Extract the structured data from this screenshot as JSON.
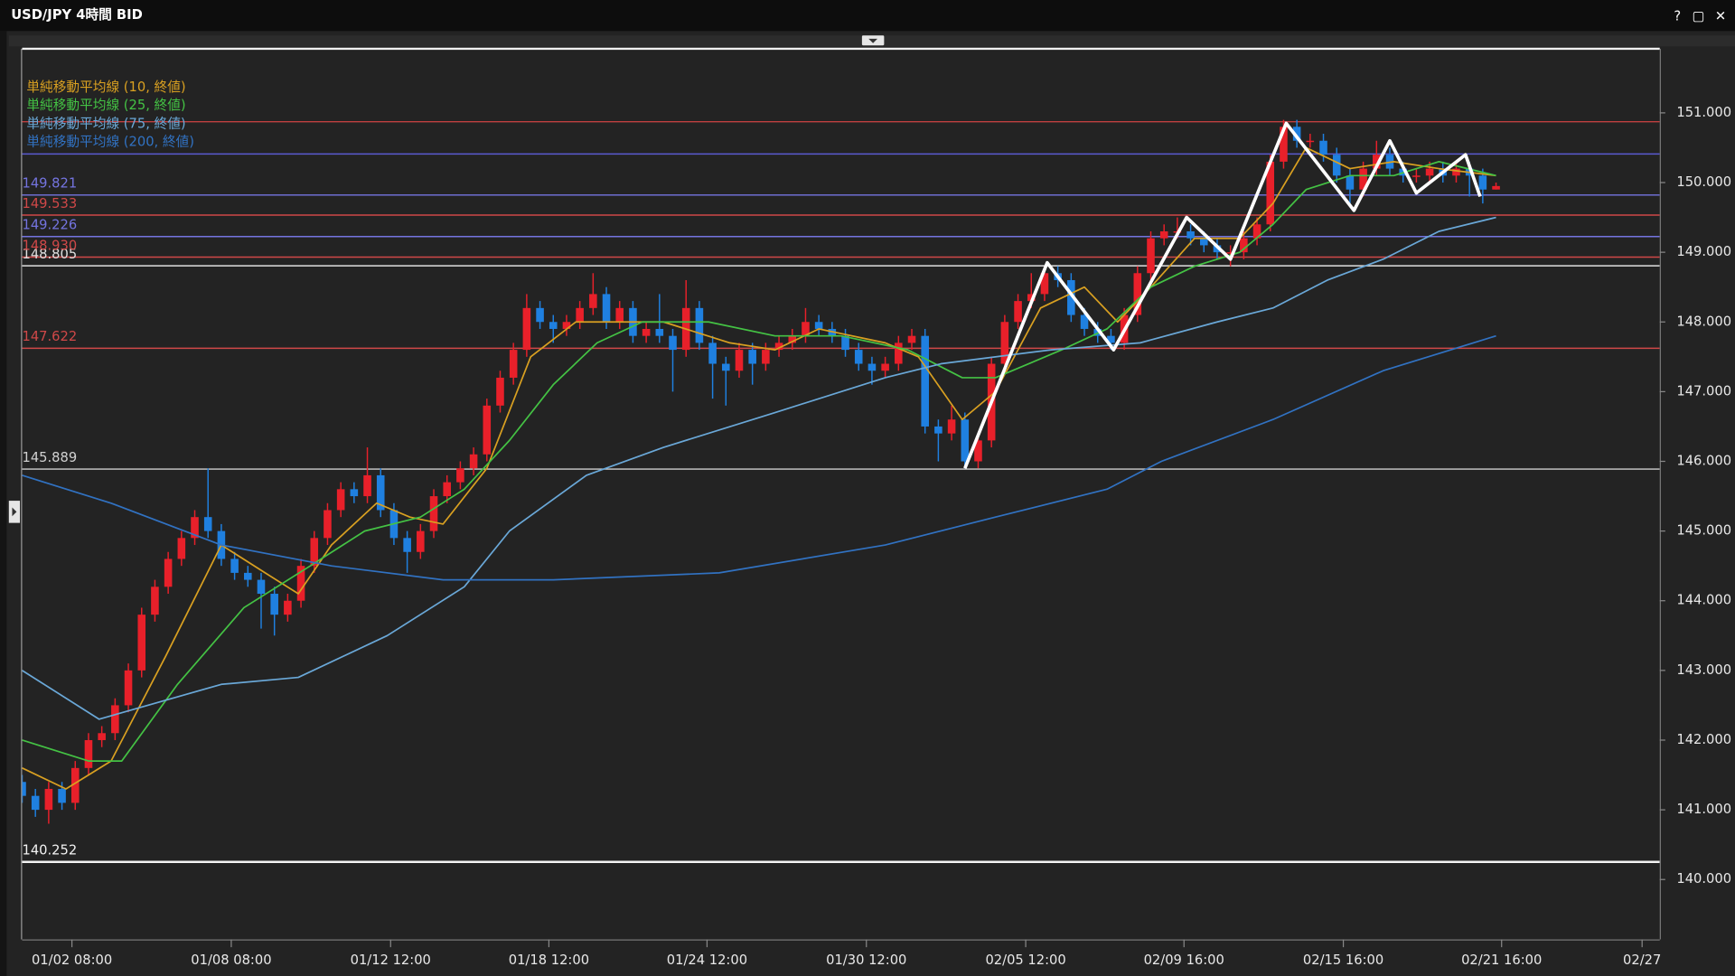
{
  "window": {
    "title": "USD/JPY 4時間 BID",
    "buttons": [
      "?",
      "▢",
      "✕"
    ]
  },
  "chart_data": {
    "type": "candlestick",
    "x": [
      0,
      1,
      2,
      3,
      4,
      5,
      6,
      7,
      8,
      9,
      10,
      11,
      12,
      13,
      14,
      15,
      16,
      17,
      18,
      19,
      20,
      21,
      22,
      23,
      24,
      25,
      26,
      27,
      28,
      29,
      30,
      31,
      32,
      33,
      34,
      35,
      36,
      37,
      38,
      39,
      40,
      41,
      42,
      43,
      44,
      45,
      46,
      47,
      48,
      49,
      50,
      51,
      52,
      53,
      54,
      55,
      56,
      57,
      58,
      59,
      60,
      61,
      62,
      63,
      64,
      65,
      66,
      67,
      68,
      69,
      70,
      71,
      72,
      73,
      74,
      75,
      76,
      77,
      78,
      79,
      80,
      81,
      82,
      83,
      84,
      85,
      86,
      87,
      88,
      89,
      90,
      91,
      92,
      93,
      94,
      95,
      96,
      97,
      98,
      99,
      100,
      101,
      102,
      103,
      104,
      105,
      106,
      107,
      108,
      109,
      110,
      111
    ],
    "open": [
      141.4,
      141.2,
      141.0,
      141.3,
      141.1,
      141.6,
      142.0,
      142.1,
      142.5,
      143.0,
      143.8,
      144.2,
      144.6,
      144.9,
      145.2,
      145.0,
      144.6,
      144.4,
      144.3,
      144.1,
      143.8,
      144.0,
      144.5,
      144.9,
      145.3,
      145.6,
      145.5,
      145.8,
      145.3,
      144.9,
      144.7,
      145.0,
      145.5,
      145.7,
      145.9,
      146.1,
      146.8,
      147.2,
      147.6,
      148.2,
      148.0,
      147.9,
      148.0,
      148.2,
      148.4,
      148.0,
      148.2,
      147.8,
      147.9,
      147.8,
      147.6,
      148.2,
      147.7,
      147.4,
      147.3,
      147.6,
      147.4,
      147.6,
      147.7,
      147.8,
      148.0,
      147.9,
      147.8,
      147.6,
      147.4,
      147.3,
      147.4,
      147.7,
      147.8,
      146.5,
      146.4,
      146.6,
      146.0,
      146.3,
      147.4,
      148.0,
      148.3,
      148.4,
      148.7,
      148.6,
      148.1,
      147.9,
      147.8,
      147.7,
      148.1,
      148.7,
      149.2,
      149.3,
      149.3,
      149.2,
      149.1,
      149.0,
      149.0,
      149.2,
      149.4,
      150.3,
      150.8,
      150.6,
      150.6,
      150.4,
      150.1,
      149.9,
      150.2,
      150.4,
      150.2,
      150.1,
      150.1,
      150.2,
      150.1,
      150.2,
      150.1,
      149.9
    ],
    "high": [
      141.5,
      141.3,
      141.4,
      141.4,
      141.7,
      142.1,
      142.2,
      142.6,
      143.1,
      143.9,
      144.3,
      144.7,
      145.0,
      145.3,
      145.9,
      145.1,
      144.7,
      144.5,
      144.4,
      144.2,
      144.1,
      144.6,
      145.0,
      145.4,
      145.7,
      145.7,
      146.2,
      145.9,
      145.4,
      145.0,
      145.1,
      145.6,
      145.8,
      146.0,
      146.2,
      146.9,
      147.3,
      147.7,
      148.4,
      148.3,
      148.1,
      148.1,
      148.3,
      148.7,
      148.5,
      148.3,
      148.3,
      148.0,
      148.4,
      147.9,
      148.6,
      148.3,
      147.8,
      147.5,
      147.7,
      147.7,
      147.7,
      147.8,
      147.9,
      148.2,
      148.1,
      148.0,
      147.9,
      147.7,
      147.5,
      147.5,
      147.8,
      147.9,
      147.9,
      146.6,
      146.8,
      146.7,
      146.4,
      147.5,
      148.1,
      148.4,
      148.7,
      148.8,
      148.8,
      148.7,
      148.2,
      148.0,
      147.9,
      148.2,
      148.8,
      149.3,
      149.4,
      149.5,
      149.4,
      149.3,
      149.2,
      149.1,
      149.3,
      149.5,
      150.4,
      150.9,
      150.9,
      150.7,
      150.7,
      150.5,
      150.2,
      150.3,
      150.6,
      150.5,
      150.3,
      150.2,
      150.3,
      150.3,
      150.3,
      150.3,
      150.2,
      150.0
    ],
    "low": [
      141.1,
      140.9,
      140.8,
      141.0,
      141.0,
      141.5,
      141.9,
      142.0,
      142.4,
      142.9,
      143.7,
      144.1,
      144.5,
      144.8,
      144.9,
      144.5,
      144.3,
      144.2,
      143.6,
      143.5,
      143.7,
      143.9,
      144.4,
      144.8,
      145.2,
      145.4,
      145.4,
      145.2,
      144.8,
      144.4,
      144.6,
      144.9,
      145.4,
      145.6,
      145.8,
      146.0,
      146.7,
      147.1,
      147.5,
      147.9,
      147.7,
      147.8,
      147.9,
      148.1,
      147.9,
      147.9,
      147.7,
      147.7,
      147.7,
      147.0,
      147.5,
      147.6,
      146.9,
      146.8,
      147.2,
      147.1,
      147.3,
      147.5,
      147.6,
      147.7,
      147.8,
      147.7,
      147.5,
      147.3,
      147.1,
      147.2,
      147.3,
      147.6,
      146.4,
      146.0,
      146.3,
      145.9,
      145.9,
      146.2,
      147.3,
      147.9,
      148.2,
      148.3,
      148.5,
      148.0,
      147.8,
      147.7,
      147.6,
      147.6,
      148.0,
      148.6,
      149.1,
      149.2,
      149.1,
      149.0,
      148.9,
      148.8,
      148.9,
      149.1,
      149.3,
      150.2,
      150.5,
      150.5,
      150.3,
      150.0,
      149.7,
      149.8,
      150.1,
      150.1,
      150.0,
      150.0,
      150.0,
      150.0,
      150.0,
      149.8,
      149.7,
      149.9
    ],
    "close": [
      141.2,
      141.0,
      141.3,
      141.1,
      141.6,
      142.0,
      142.1,
      142.5,
      143.0,
      143.8,
      144.2,
      144.6,
      144.9,
      145.2,
      145.0,
      144.6,
      144.4,
      144.3,
      144.1,
      143.8,
      144.0,
      144.5,
      144.9,
      145.3,
      145.6,
      145.5,
      145.8,
      145.3,
      144.9,
      144.7,
      145.0,
      145.5,
      145.7,
      145.9,
      146.1,
      146.8,
      147.2,
      147.6,
      148.2,
      148.0,
      147.9,
      148.0,
      148.2,
      148.4,
      148.0,
      148.2,
      147.8,
      147.9,
      147.8,
      147.6,
      148.2,
      147.7,
      147.4,
      147.3,
      147.6,
      147.4,
      147.6,
      147.7,
      147.8,
      148.0,
      147.9,
      147.8,
      147.6,
      147.4,
      147.3,
      147.4,
      147.7,
      147.8,
      146.5,
      146.4,
      146.6,
      146.0,
      146.3,
      147.4,
      148.0,
      148.3,
      148.4,
      148.7,
      148.6,
      148.1,
      147.9,
      147.8,
      147.7,
      148.1,
      148.7,
      149.2,
      149.3,
      149.3,
      149.2,
      149.1,
      149.0,
      149.0,
      149.2,
      149.4,
      150.3,
      150.8,
      150.6,
      150.6,
      150.4,
      150.1,
      149.9,
      150.2,
      150.4,
      150.2,
      150.1,
      150.1,
      150.2,
      150.1,
      150.2,
      150.1,
      149.9,
      149.95
    ],
    "up_color": "#e8202a",
    "down_color": "#1f80e0",
    "xlim": [
      0,
      123.33
    ],
    "xticks": [
      {
        "value": 3.75,
        "label": "01/02 08:00"
      },
      {
        "value": 15.75,
        "label": "01/08 08:00"
      },
      {
        "value": 27.75,
        "label": "01/12 12:00"
      },
      {
        "value": 39.67,
        "label": "01/18 12:00"
      },
      {
        "value": 51.58,
        "label": "01/24 12:00"
      },
      {
        "value": 63.58,
        "label": "01/30 12:00"
      },
      {
        "value": 75.58,
        "label": "02/05 12:00"
      },
      {
        "value": 87.5,
        "label": "02/09 16:00"
      },
      {
        "value": 99.5,
        "label": "02/15 16:00"
      },
      {
        "value": 111.42,
        "label": "02/21 16:00"
      },
      {
        "value": 122,
        "label": "02/27"
      }
    ],
    "ylim": [
      139.14,
      151.92
    ],
    "yticks": [
      {
        "value": 140,
        "label": "140.000"
      },
      {
        "value": 141,
        "label": "141.000"
      },
      {
        "value": 142,
        "label": "142.000"
      },
      {
        "value": 143,
        "label": "143.000"
      },
      {
        "value": 144,
        "label": "144.000"
      },
      {
        "value": 145,
        "label": "145.000"
      },
      {
        "value": 146,
        "label": "146.000"
      },
      {
        "value": 147,
        "label": "147.000"
      },
      {
        "value": 148,
        "label": "148.000"
      },
      {
        "value": 149,
        "label": "149.000"
      },
      {
        "value": 150,
        "label": "150.000"
      },
      {
        "value": 151,
        "label": "151.000"
      }
    ],
    "series": [
      {
        "name": "単純移動平均線 (10, 終値)",
        "color": "#d9a021",
        "x": [
          0,
          3.3,
          6.7,
          10.8,
          15,
          18.3,
          20.8,
          23.3,
          26.7,
          29.2,
          31.7,
          35,
          38.3,
          41.7,
          45,
          48.3,
          53.3,
          56.7,
          60,
          65,
          67.5,
          70.8,
          73.3,
          76.7,
          80,
          82.5,
          85,
          88.3,
          91.7,
          94.2,
          96.7,
          100,
          103.3,
          106.7,
          111
        ],
        "values": [
          141.6,
          141.3,
          141.7,
          143.2,
          144.8,
          144.4,
          144.1,
          144.8,
          145.4,
          145.2,
          145.1,
          145.9,
          147.5,
          148.0,
          148.0,
          148.0,
          147.7,
          147.6,
          147.9,
          147.7,
          147.5,
          146.6,
          147.0,
          148.2,
          148.5,
          148.0,
          148.5,
          149.2,
          149.2,
          149.7,
          150.5,
          150.2,
          150.3,
          150.2,
          150.1
        ]
      },
      {
        "name": "単純移動平均線 (25, 終値)",
        "color": "#44c244",
        "x": [
          0,
          5,
          7.5,
          11.7,
          16.7,
          21.7,
          25.8,
          30,
          33.3,
          36.7,
          40,
          43.3,
          46.7,
          51.7,
          56.7,
          61.7,
          66.7,
          70.8,
          73.3,
          78.3,
          81.7,
          85,
          88.3,
          91.7,
          94.2,
          96.7,
          100,
          103.3,
          106.7,
          111
        ],
        "values": [
          142.0,
          141.7,
          141.7,
          142.8,
          143.9,
          144.5,
          145.0,
          145.2,
          145.6,
          146.3,
          147.1,
          147.7,
          148.0,
          148.0,
          147.8,
          147.8,
          147.6,
          147.2,
          147.2,
          147.6,
          147.9,
          148.5,
          148.8,
          149.0,
          149.4,
          149.9,
          150.1,
          150.1,
          150.3,
          150.1
        ]
      },
      {
        "name": "単純移動平均線 (75, 終値)",
        "color": "#6aa8d8",
        "x": [
          0,
          5.8,
          15,
          20.8,
          27.5,
          33.3,
          36.7,
          42.5,
          48.3,
          56.7,
          65,
          69.2,
          77.5,
          84.2,
          90,
          94.2,
          98.3,
          102.5,
          106.7,
          111
        ],
        "values": [
          143.0,
          142.3,
          142.8,
          142.9,
          143.5,
          144.2,
          145.0,
          145.8,
          146.2,
          146.7,
          147.2,
          147.4,
          147.6,
          147.7,
          148.0,
          148.2,
          148.6,
          148.9,
          149.3,
          149.5
        ]
      },
      {
        "name": "単純移動平均線 (200, 終値)",
        "color": "#3172c2",
        "x": [
          0,
          6.7,
          15,
          23.3,
          31.7,
          40,
          52.5,
          65,
          73.3,
          81.7,
          85.8,
          94.2,
          102.5,
          111
        ],
        "values": [
          145.8,
          145.4,
          144.8,
          144.5,
          144.3,
          144.3,
          144.4,
          144.8,
          145.2,
          145.6,
          146.0,
          146.6,
          147.3,
          147.8
        ]
      }
    ],
    "levels": [
      {
        "value": 140.252,
        "label": "140.252",
        "color": "#f2f2f2"
      },
      {
        "value": 145.889,
        "label": "145.889",
        "color": "#d0d0d0"
      },
      {
        "value": 147.622,
        "label": "147.622",
        "color": "#d04848"
      },
      {
        "value": 148.805,
        "label": "148.805",
        "color": "#e0e0e0"
      },
      {
        "value": 148.93,
        "label": "148.930",
        "color": "#d04848"
      },
      {
        "value": 149.226,
        "label": "149.226",
        "color": "#7474e0"
      },
      {
        "value": 149.533,
        "label": "149.533",
        "color": "#d04848"
      },
      {
        "value": 149.821,
        "label": "149.821",
        "color": "#7474e0"
      },
      {
        "value": 150.41,
        "color": "#5a5ad0"
      },
      {
        "value": 150.873,
        "color": "#c04040"
      }
    ],
    "drawings": [
      {
        "color": "#ffffff",
        "x": [
          71,
          77.2,
          82.2,
          87.7,
          91,
          95.2,
          100.3,
          103,
          105,
          108.7,
          109.8
        ],
        "values": [
          145.9,
          148.85,
          147.6,
          149.5,
          148.9,
          150.85,
          149.6,
          150.6,
          149.85,
          150.4,
          149.8
        ]
      }
    ]
  }
}
